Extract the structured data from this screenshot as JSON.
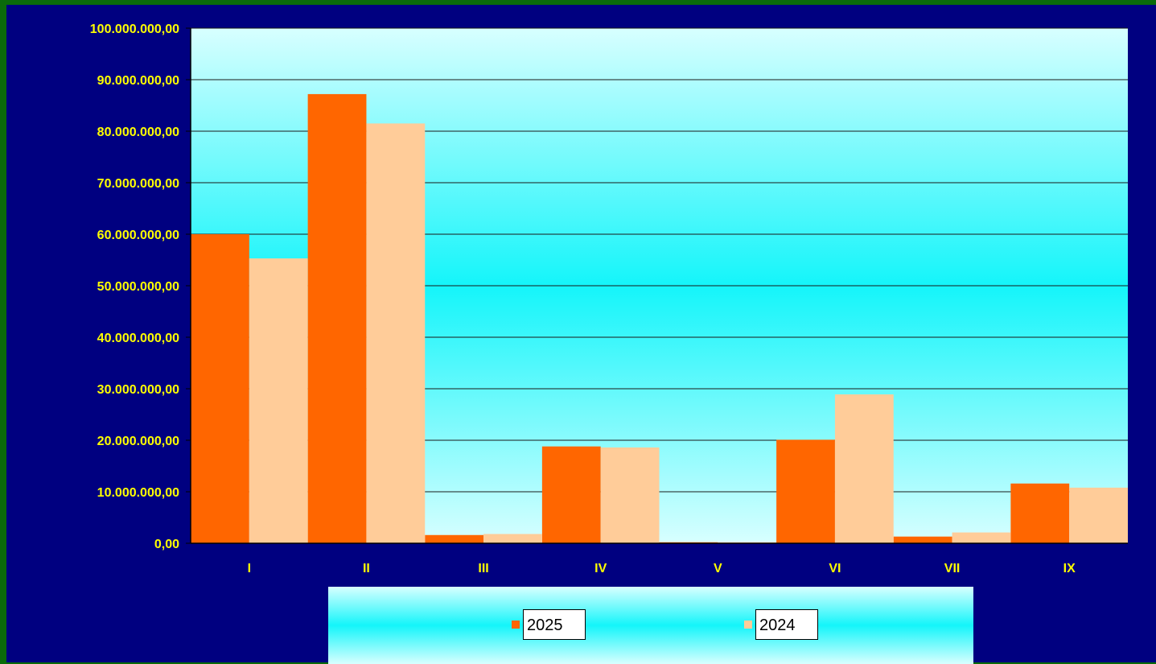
{
  "colors": {
    "frame": "#000080",
    "outer_border": "#0a6b0a",
    "plot_gradient_edge": "#d8ffff",
    "plot_gradient_center": "#14f5fa",
    "gridline": "#1a1a1a",
    "tick_text": "#ffff00"
  },
  "chart_data": {
    "type": "bar",
    "title": "",
    "xlabel": "",
    "ylabel": "",
    "ylim": [
      0,
      100000000
    ],
    "ytick_step": 10000000,
    "grid": true,
    "legend_position": "bottom",
    "categories": [
      "I",
      "II",
      "III",
      "IV",
      "V",
      "VI",
      "VII",
      "IX"
    ],
    "series": [
      {
        "name": "2025",
        "color": "#ff6600",
        "values": [
          60000000,
          87200000,
          1600000,
          18800000,
          200000,
          20100000,
          1300000,
          11600000
        ]
      },
      {
        "name": "2024",
        "color": "#ffcc99",
        "values": [
          55300000,
          81500000,
          1800000,
          18600000,
          200000,
          28900000,
          2100000,
          10800000
        ]
      }
    ],
    "ytick_labels": [
      "0,00",
      "10.000.000,00",
      "20.000.000,00",
      "30.000.000,00",
      "40.000.000,00",
      "50.000.000,00",
      "60.000.000,00",
      "70.000.000,00",
      "80.000.000,00",
      "90.000.000,00",
      "100.000.000,00"
    ]
  },
  "legend": {
    "items": [
      {
        "label": "2025",
        "color": "#ff6600"
      },
      {
        "label": "2024",
        "color": "#ffcc99"
      }
    ]
  }
}
